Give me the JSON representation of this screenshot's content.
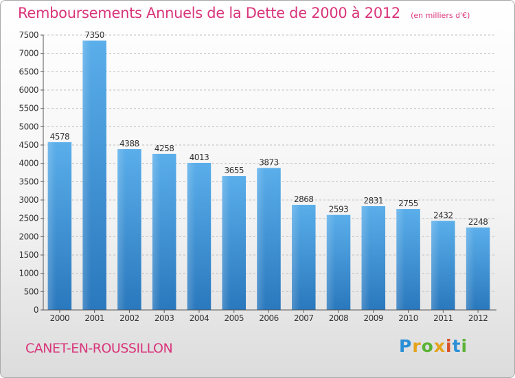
{
  "header": {
    "title": "Remboursements Annuels de la Dette de 2000 à 2012",
    "subtitle": "(en milliers d'€)"
  },
  "footer": {
    "place": "CANET-EN-ROUSSILLON",
    "logo_letters": [
      "P",
      "r",
      "o",
      "x",
      "i",
      "t",
      "i"
    ]
  },
  "colors": {
    "bar_light": "#5aaeea",
    "bar_dark": "#2a78bd",
    "accent": "#d9347a",
    "grid": "#bfbfbf"
  },
  "chart_data": {
    "type": "bar",
    "title": "Remboursements Annuels de la Dette de 2000 à 2012",
    "subtitle": "(en milliers d'€)",
    "categories": [
      "2000",
      "2001",
      "2002",
      "2003",
      "2004",
      "2005",
      "2006",
      "2007",
      "2008",
      "2009",
      "2010",
      "2011",
      "2012"
    ],
    "values": [
      4578,
      7350,
      4388,
      4258,
      4013,
      3655,
      3873,
      2868,
      2593,
      2831,
      2755,
      2432,
      2248
    ],
    "ylim": [
      0,
      7500
    ],
    "yticks": [
      0,
      500,
      1000,
      1500,
      2000,
      2500,
      3000,
      3500,
      4000,
      4500,
      5000,
      5500,
      6000,
      6500,
      7000,
      7500
    ],
    "xlabel": "",
    "ylabel": "",
    "grid": true,
    "data_labels": true
  }
}
